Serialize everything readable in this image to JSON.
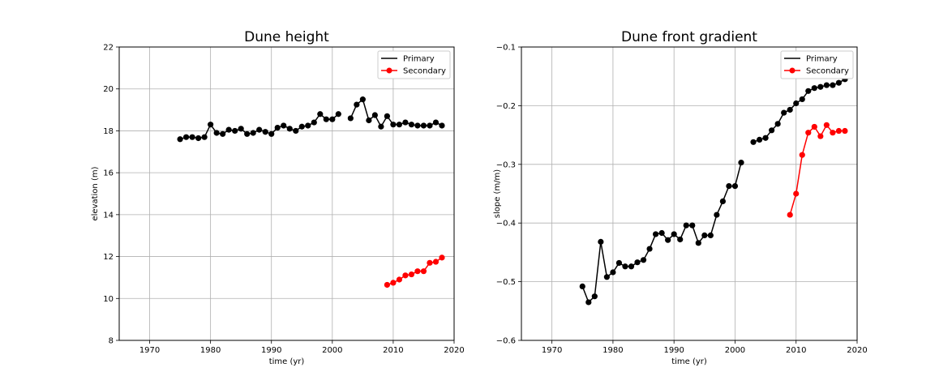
{
  "colors": {
    "primary": "#000000",
    "secondary": "#ff0000",
    "grid": "#b0b0b0"
  },
  "chart_data": [
    {
      "type": "line",
      "title": "Dune height",
      "xlabel": "time (yr)",
      "ylabel": "elevation (m)",
      "xlim": [
        1965,
        2020
      ],
      "ylim": [
        8,
        22
      ],
      "xticks": [
        1970,
        1980,
        1990,
        2000,
        2010,
        2020
      ],
      "yticks": [
        8,
        10,
        12,
        14,
        16,
        18,
        20,
        22
      ],
      "ytick_labels": [
        "8",
        "10",
        "12",
        "14",
        "16",
        "18",
        "20",
        "22"
      ],
      "grid": true,
      "legend": "top-right",
      "series": [
        {
          "name": "Primary",
          "color": "#000000",
          "segments": [
            {
              "x": [
                1975,
                1976,
                1977,
                1978,
                1979,
                1980,
                1981,
                1982,
                1983,
                1984,
                1985,
                1986,
                1987,
                1988,
                1989,
                1990,
                1991,
                1992,
                1993,
                1994,
                1995,
                1996,
                1997,
                1998,
                1999,
                2000,
                2001
              ],
              "y": [
                17.6,
                17.7,
                17.7,
                17.65,
                17.7,
                18.3,
                17.9,
                17.85,
                18.05,
                18.0,
                18.1,
                17.85,
                17.9,
                18.05,
                17.95,
                17.85,
                18.15,
                18.25,
                18.1,
                18.0,
                18.2,
                18.25,
                18.4,
                18.8,
                18.55,
                18.55,
                18.8
              ]
            },
            {
              "x": [
                2003,
                2004,
                2005,
                2006,
                2007,
                2008,
                2009,
                2010,
                2011,
                2012,
                2013,
                2014,
                2015,
                2016,
                2017,
                2018
              ],
              "y": [
                18.6,
                19.25,
                19.5,
                18.5,
                18.75,
                18.2,
                18.7,
                18.3,
                18.3,
                18.4,
                18.3,
                18.25,
                18.25,
                18.25,
                18.4,
                18.25
              ]
            }
          ]
        },
        {
          "name": "Secondary",
          "color": "#ff0000",
          "segments": [
            {
              "x": [
                2009,
                2010,
                2011,
                2012,
                2013,
                2014,
                2015,
                2016,
                2017,
                2018
              ],
              "y": [
                10.65,
                10.75,
                10.9,
                11.1,
                11.15,
                11.3,
                11.3,
                11.7,
                11.75,
                11.95
              ]
            }
          ]
        }
      ]
    },
    {
      "type": "line",
      "title": "Dune front gradient",
      "xlabel": "time (yr)",
      "ylabel": "slope (m/m)",
      "xlim": [
        1965,
        2020
      ],
      "ylim": [
        -0.6,
        -0.1
      ],
      "xticks": [
        1970,
        1980,
        1990,
        2000,
        2010,
        2020
      ],
      "yticks": [
        -0.6,
        -0.5,
        -0.4,
        -0.3,
        -0.2,
        -0.1
      ],
      "ytick_labels": [
        "−0.6",
        "−0.5",
        "−0.4",
        "−0.3",
        "−0.2",
        "−0.1"
      ],
      "grid": true,
      "legend": "top-right",
      "series": [
        {
          "name": "Primary",
          "color": "#000000",
          "segments": [
            {
              "x": [
                1975,
                1976,
                1977,
                1978,
                1979,
                1980,
                1981,
                1982,
                1983,
                1984,
                1985,
                1986,
                1987,
                1988,
                1989,
                1990,
                1991,
                1992,
                1993,
                1994,
                1995,
                1996,
                1997,
                1998,
                1999,
                2000,
                2001
              ],
              "y": [
                -0.508,
                -0.535,
                -0.525,
                -0.432,
                -0.492,
                -0.484,
                -0.468,
                -0.474,
                -0.474,
                -0.467,
                -0.463,
                -0.444,
                -0.419,
                -0.417,
                -0.429,
                -0.419,
                -0.428,
                -0.404,
                -0.404,
                -0.434,
                -0.421,
                -0.421,
                -0.386,
                -0.363,
                -0.337,
                -0.337,
                -0.297
              ]
            },
            {
              "x": [
                2003,
                2004,
                2005,
                2006,
                2007,
                2008,
                2009,
                2010,
                2011,
                2012,
                2013,
                2014,
                2015,
                2016,
                2017,
                2018
              ],
              "y": [
                -0.262,
                -0.258,
                -0.255,
                -0.242,
                -0.231,
                -0.212,
                -0.207,
                -0.196,
                -0.189,
                -0.175,
                -0.17,
                -0.168,
                -0.165,
                -0.165,
                -0.161,
                -0.155
              ]
            }
          ]
        },
        {
          "name": "Secondary",
          "color": "#ff0000",
          "segments": [
            {
              "x": [
                2009,
                2010,
                2011,
                2012,
                2013,
                2014,
                2015,
                2016,
                2017,
                2018
              ],
              "y": [
                -0.386,
                -0.35,
                -0.284,
                -0.246,
                -0.236,
                -0.252,
                -0.233,
                -0.246,
                -0.243,
                -0.243
              ]
            }
          ]
        }
      ]
    }
  ]
}
